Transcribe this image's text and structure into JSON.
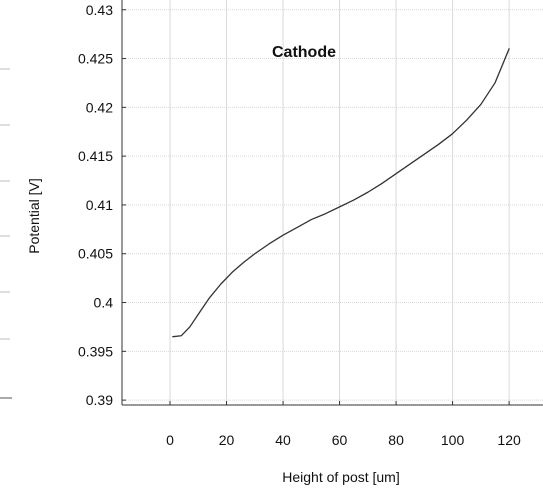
{
  "chart_data": {
    "type": "line",
    "title": "Cathode",
    "xlabel": "Height of post [um]",
    "ylabel": "Potential [V]",
    "xlim": [
      -17,
      132
    ],
    "ylim": [
      0.3895,
      0.431
    ],
    "grid": true,
    "x_ticks": [
      0,
      20,
      40,
      60,
      80,
      100,
      120
    ],
    "x_tick_labels": [
      "0",
      "20",
      "40",
      "60",
      "80",
      "100",
      "120"
    ],
    "y_ticks": [
      0.39,
      0.395,
      0.4,
      0.405,
      0.41,
      0.415,
      0.42,
      0.425,
      0.43
    ],
    "y_tick_labels": [
      "0.39",
      "0.395",
      "0.4",
      "0.405",
      "0.41",
      "0.415",
      "0.42",
      "0.425",
      "0.43"
    ],
    "series": [
      {
        "color": "#333333",
        "x": [
          1,
          4,
          7,
          10,
          14,
          18,
          22,
          26,
          30,
          35,
          40,
          45,
          50,
          55,
          60,
          65,
          70,
          75,
          80,
          85,
          90,
          95,
          100,
          105,
          110,
          115,
          120
        ],
        "y": [
          0.3965,
          0.3966,
          0.3975,
          0.3988,
          0.4005,
          0.4019,
          0.4031,
          0.4041,
          0.405,
          0.406,
          0.4069,
          0.4077,
          0.4085,
          0.4091,
          0.4098,
          0.4105,
          0.4113,
          0.4122,
          0.4132,
          0.4142,
          0.4152,
          0.4162,
          0.4173,
          0.4187,
          0.4203,
          0.4225,
          0.426
        ]
      }
    ]
  }
}
